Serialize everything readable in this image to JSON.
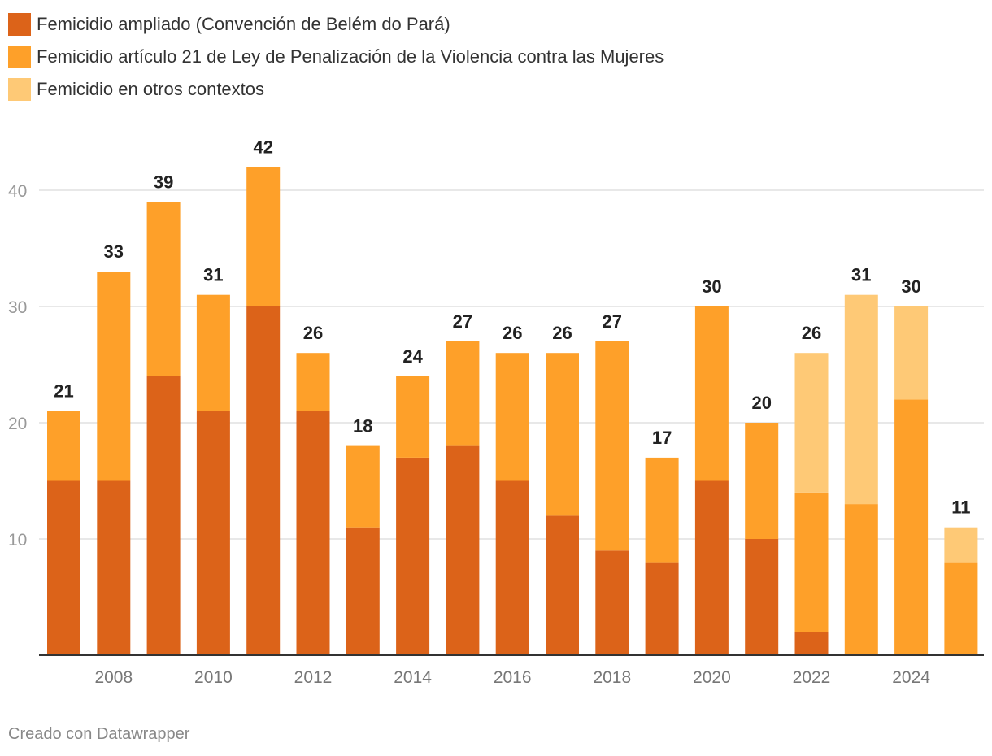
{
  "chart_data": {
    "type": "bar",
    "stacked": true,
    "categories": [
      "2007",
      "2008",
      "2009",
      "2010",
      "2011",
      "2012",
      "2013",
      "2014",
      "2015",
      "2016",
      "2017",
      "2018",
      "2019",
      "2020",
      "2021",
      "2022",
      "2023",
      "2024",
      "2025"
    ],
    "series": [
      {
        "name": "Femicidio ampliado (Convención de Belém do Pará)",
        "color": "#dc6319",
        "values": [
          15,
          15,
          24,
          21,
          30,
          21,
          11,
          17,
          18,
          15,
          12,
          9,
          8,
          15,
          10,
          2,
          0,
          0,
          0
        ]
      },
      {
        "name": "Femicidio artículo 21 de Ley de Penalización de la Violencia contra las Mujeres",
        "color": "#fea029",
        "values": [
          6,
          18,
          15,
          10,
          12,
          5,
          7,
          7,
          9,
          11,
          14,
          18,
          9,
          15,
          10,
          12,
          13,
          22,
          8
        ]
      },
      {
        "name": "Femicidio en otros contextos",
        "color": "#fec976",
        "values": [
          0,
          0,
          0,
          0,
          0,
          0,
          0,
          0,
          0,
          0,
          0,
          0,
          0,
          0,
          0,
          12,
          18,
          8,
          3
        ]
      }
    ],
    "totals": [
      "21",
      "33",
      "39",
      "31",
      "42",
      "26",
      "18",
      "24",
      "27",
      "26",
      "26",
      "27",
      "17",
      "30",
      "20",
      "26",
      "31",
      "30",
      "11"
    ],
    "y_ticks": [
      "10",
      "20",
      "30",
      "40"
    ],
    "x_tick_labels": [
      "2008",
      "2010",
      "2012",
      "2014",
      "2016",
      "2018",
      "2020",
      "2022",
      "2024"
    ],
    "ylim": [
      0,
      42
    ],
    "grid": true,
    "legend_position": "top-left"
  },
  "footer": "Creado con Datawrapper"
}
